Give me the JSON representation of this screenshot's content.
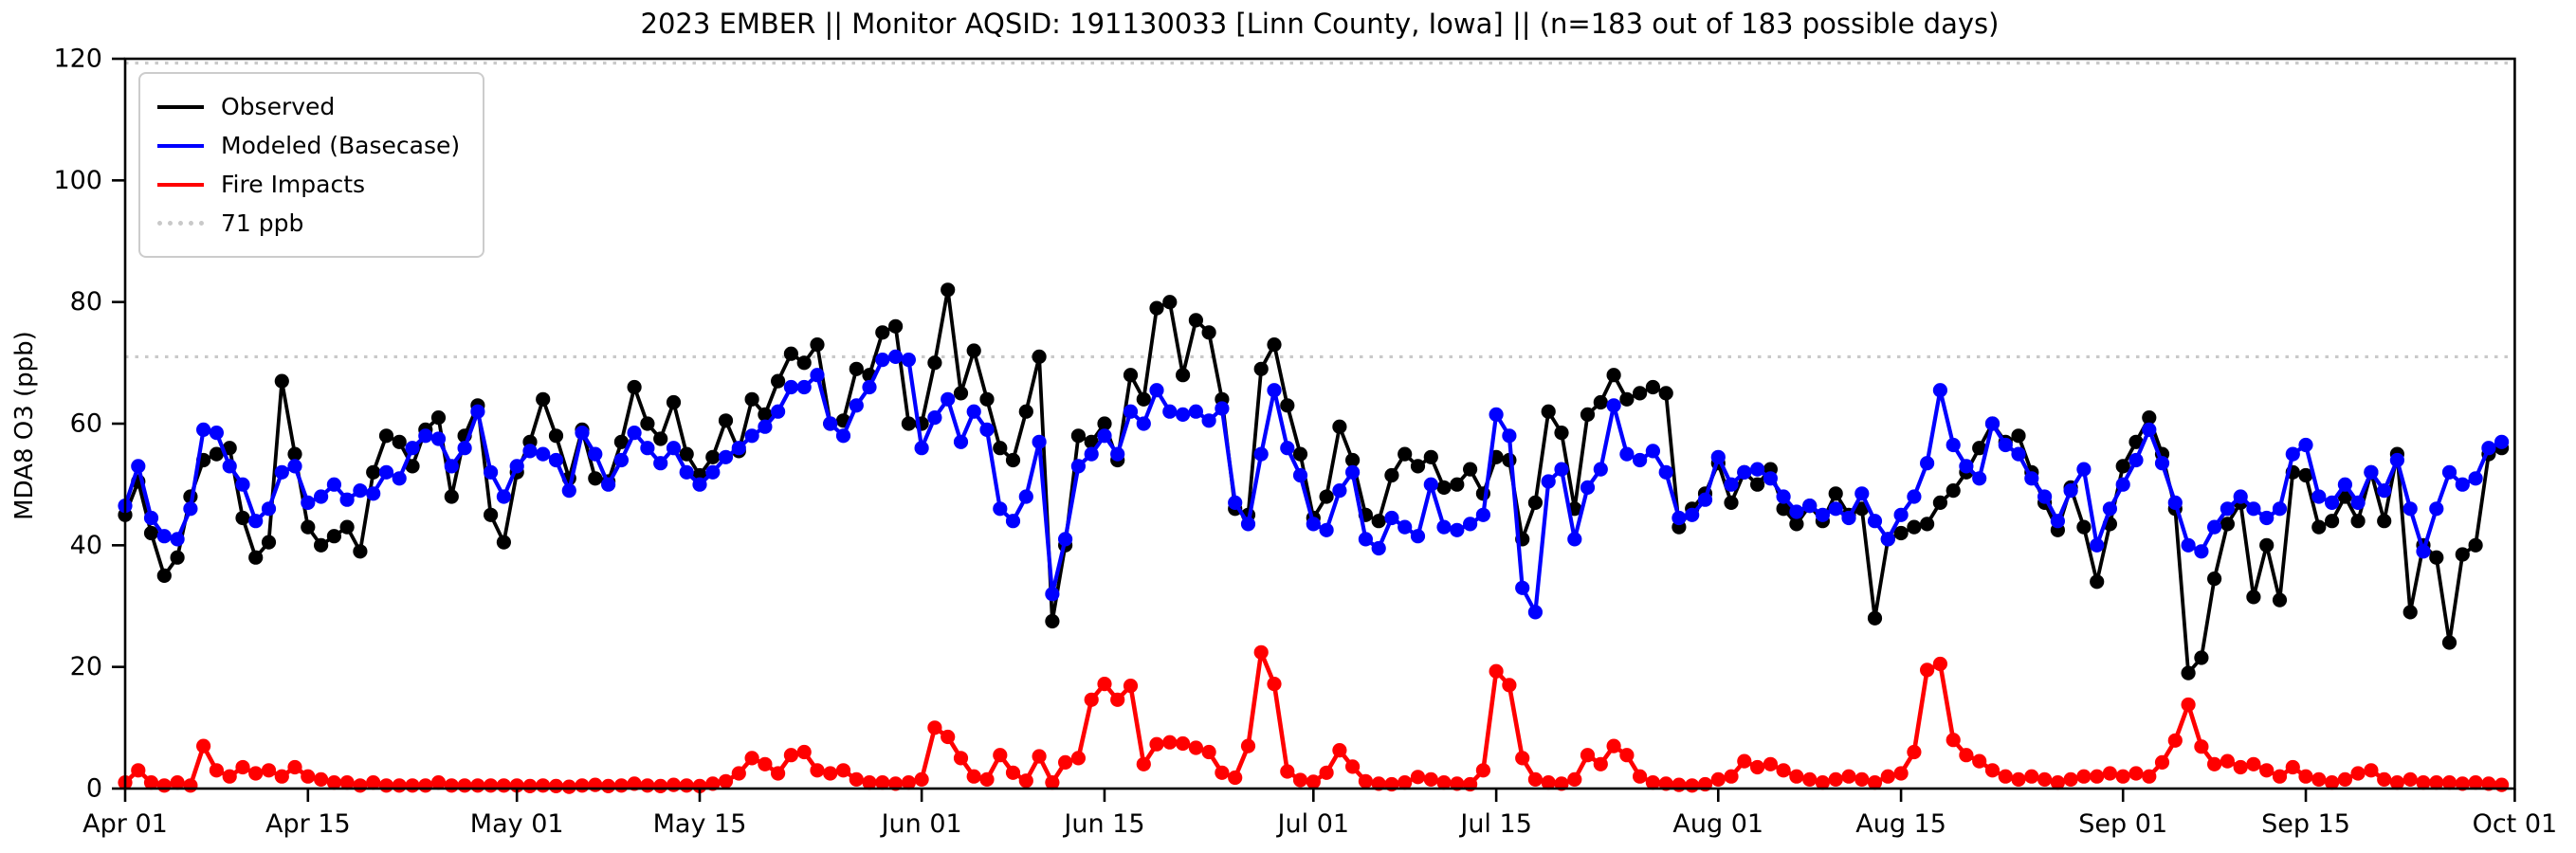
{
  "chart_data": {
    "type": "line",
    "title": "2023 EMBER || Monitor AQSID: 191130033 [Linn County, Iowa] || (n=183 out of 183 possible days)",
    "ylabel": "MDA8 O3 (ppb)",
    "xlabel": "",
    "ylim": [
      0,
      120
    ],
    "y_ticks": [
      0,
      20,
      40,
      60,
      80,
      100,
      120
    ],
    "x_start_date": "Apr 01",
    "x_end_date": "Oct 01",
    "n_days": 183,
    "x_tick_labels": [
      "Apr 01",
      "Apr 15",
      "May 01",
      "May 15",
      "Jun 01",
      "Jun 15",
      "Jul 01",
      "Jul 15",
      "Aug 01",
      "Aug 15",
      "Sep 01",
      "Sep 15",
      "Oct 01"
    ],
    "x_tick_day_offsets": [
      0,
      14,
      30,
      44,
      61,
      75,
      91,
      105,
      122,
      136,
      153,
      167,
      183
    ],
    "grid": false,
    "legend_position": "upper-left",
    "reference_lines": [
      {
        "value": 71,
        "label": "71 ppb",
        "style": "dotted",
        "color": "#c9c9c9"
      },
      {
        "value": 119.3,
        "label": "",
        "style": "dotted",
        "color": "#c9c9c9"
      }
    ],
    "legend": [
      {
        "label": "Observed",
        "color": "#000000",
        "style": "solid"
      },
      {
        "label": "Modeled (Basecase)",
        "color": "#0000ff",
        "style": "solid"
      },
      {
        "label": "Fire Impacts",
        "color": "#ff0000",
        "style": "solid"
      },
      {
        "label": "71 ppb",
        "color": "#c9c9c9",
        "style": "dotted"
      }
    ],
    "series": [
      {
        "name": "Observed",
        "color": "#000000",
        "values": [
          45,
          50.5,
          42,
          35,
          38,
          48,
          54,
          55,
          56,
          44.5,
          38,
          40.5,
          67,
          55,
          43,
          40,
          41.5,
          43,
          39,
          52,
          58,
          57,
          53,
          59,
          61,
          48,
          58,
          63,
          45,
          40.5,
          52,
          57,
          64,
          58,
          51,
          59,
          51,
          50.5,
          57,
          66,
          60,
          57.5,
          63.5,
          55,
          51.5,
          54.5,
          60.5,
          55.5,
          64,
          61.5,
          67,
          71.5,
          70,
          73,
          60,
          60.5,
          69,
          68,
          75,
          76,
          60,
          60,
          70,
          82,
          65,
          72,
          64,
          56,
          54,
          62,
          71,
          27.5,
          40,
          58,
          57,
          60,
          54,
          68,
          64,
          79,
          80,
          68,
          77,
          75,
          64,
          46,
          45,
          69,
          73,
          63,
          55,
          44.5,
          48,
          59.5,
          54,
          45,
          44,
          51.5,
          55,
          53,
          54.5,
          49.5,
          50,
          52.5,
          48.5,
          54.5,
          54,
          41,
          47,
          62,
          58.5,
          46,
          61.5,
          63.5,
          68,
          64,
          65,
          66,
          65,
          43,
          46,
          48.5,
          53.5,
          47,
          52,
          50,
          52.5,
          46,
          43.5,
          46.5,
          44,
          48.5,
          45,
          46,
          28,
          41,
          42,
          43,
          43.5,
          47,
          49,
          52,
          56,
          60,
          57,
          58,
          52,
          47,
          42.5,
          49.5,
          43,
          34,
          43.5,
          53,
          57,
          61,
          55,
          46,
          19,
          21.5,
          34.5,
          43.5,
          47,
          31.5,
          40,
          31,
          52,
          51.5,
          43,
          44,
          48,
          44,
          52,
          44,
          55,
          29,
          40,
          38,
          24,
          38.5,
          40,
          55,
          56
        ]
      },
      {
        "name": "Modeled (Basecase)",
        "color": "#0000ff",
        "values": [
          46.5,
          53,
          44.5,
          41.5,
          41,
          46,
          59,
          58.5,
          53,
          50,
          44,
          46,
          52,
          53,
          47,
          48,
          50,
          47.5,
          49,
          48.5,
          52,
          51,
          56,
          58,
          57.5,
          53,
          56,
          62,
          52,
          48,
          53,
          55.5,
          55,
          54,
          49,
          58.5,
          55,
          50,
          54,
          58.5,
          56,
          53.5,
          56,
          52,
          50,
          52,
          54.5,
          56,
          58,
          59.5,
          62,
          66,
          66,
          68,
          60,
          58,
          63,
          66,
          70.5,
          71,
          70.5,
          56,
          61,
          64,
          57,
          62,
          59,
          46,
          44,
          48,
          57,
          32,
          41,
          53,
          55,
          58,
          55,
          62,
          60,
          65.5,
          62,
          61.5,
          62,
          60.5,
          62.5,
          47,
          43.5,
          55,
          65.5,
          56,
          51.5,
          43.5,
          42.5,
          49,
          52,
          41,
          39.5,
          44.5,
          43,
          41.5,
          50,
          43,
          42.5,
          43.5,
          45,
          61.5,
          58,
          33,
          29,
          50.5,
          52.5,
          41,
          49.5,
          52.5,
          63,
          55,
          54,
          55.5,
          52,
          44.5,
          45,
          47.5,
          54.5,
          50,
          52,
          52.5,
          51,
          48,
          45.5,
          46.5,
          45,
          46,
          44.5,
          48.5,
          44,
          41,
          45,
          48,
          53.5,
          65.5,
          56.5,
          53,
          51,
          60,
          56.5,
          55,
          51,
          48,
          44,
          49,
          52.5,
          40,
          46,
          50,
          54,
          59,
          53.5,
          47,
          40,
          39,
          43,
          46,
          48,
          46,
          44.5,
          46,
          55,
          56.5,
          48,
          47,
          50,
          47,
          52,
          49,
          54,
          46,
          39,
          46,
          52,
          50,
          51,
          56,
          57
        ]
      },
      {
        "name": "Fire Impacts",
        "color": "#ff0000",
        "values": [
          1,
          3,
          1,
          0.5,
          1,
          0.5,
          7,
          3,
          2,
          3.5,
          2.5,
          3,
          2,
          3.5,
          2,
          1.5,
          1,
          1,
          0.5,
          1,
          0.5,
          0.5,
          0.5,
          0.5,
          1,
          0.5,
          0.5,
          0.5,
          0.5,
          0.5,
          0.5,
          0.4,
          0.5,
          0.4,
          0.3,
          0.5,
          0.6,
          0.4,
          0.5,
          0.8,
          0.5,
          0.4,
          0.6,
          0.5,
          0.4,
          0.8,
          1.2,
          2.5,
          5,
          4,
          2.5,
          5.5,
          6,
          3,
          2.5,
          3,
          1.5,
          1,
          1,
          0.8,
          1,
          1.5,
          10,
          8.5,
          5,
          2,
          1.5,
          5.5,
          2.6,
          1.3,
          5.3,
          1,
          4.3,
          5,
          14.6,
          17.2,
          14.6,
          16.9,
          4,
          7.3,
          7.6,
          7.4,
          6.7,
          6,
          2.6,
          1.8,
          7,
          22.4,
          17.2,
          2.8,
          1.4,
          1.1,
          2.6,
          6.3,
          3.6,
          1.2,
          0.8,
          0.7,
          1,
          1.9,
          1.5,
          1,
          0.8,
          0.7,
          3,
          19.3,
          17,
          5,
          1.5,
          1,
          0.8,
          1.5,
          5.5,
          4,
          7,
          5.5,
          2,
          1,
          0.8,
          0.6,
          0.5,
          0.7,
          1.5,
          2,
          4.5,
          3.5,
          4,
          3,
          2,
          1.5,
          1,
          1.5,
          2,
          1.5,
          1,
          2,
          2.5,
          6,
          19.5,
          20.5,
          8,
          5.5,
          4.5,
          3,
          2,
          1.5,
          2,
          1.5,
          1,
          1.5,
          2,
          2,
          2.5,
          2,
          2.5,
          2,
          4.3,
          7.9,
          13.8,
          6.9,
          4,
          4.5,
          3.5,
          4,
          3,
          2,
          3.5,
          2,
          1.5,
          1,
          1.5,
          2.5,
          3,
          1.5,
          1,
          1.5,
          1,
          1,
          1,
          0.8,
          1,
          0.8,
          0.6
        ]
      }
    ]
  }
}
